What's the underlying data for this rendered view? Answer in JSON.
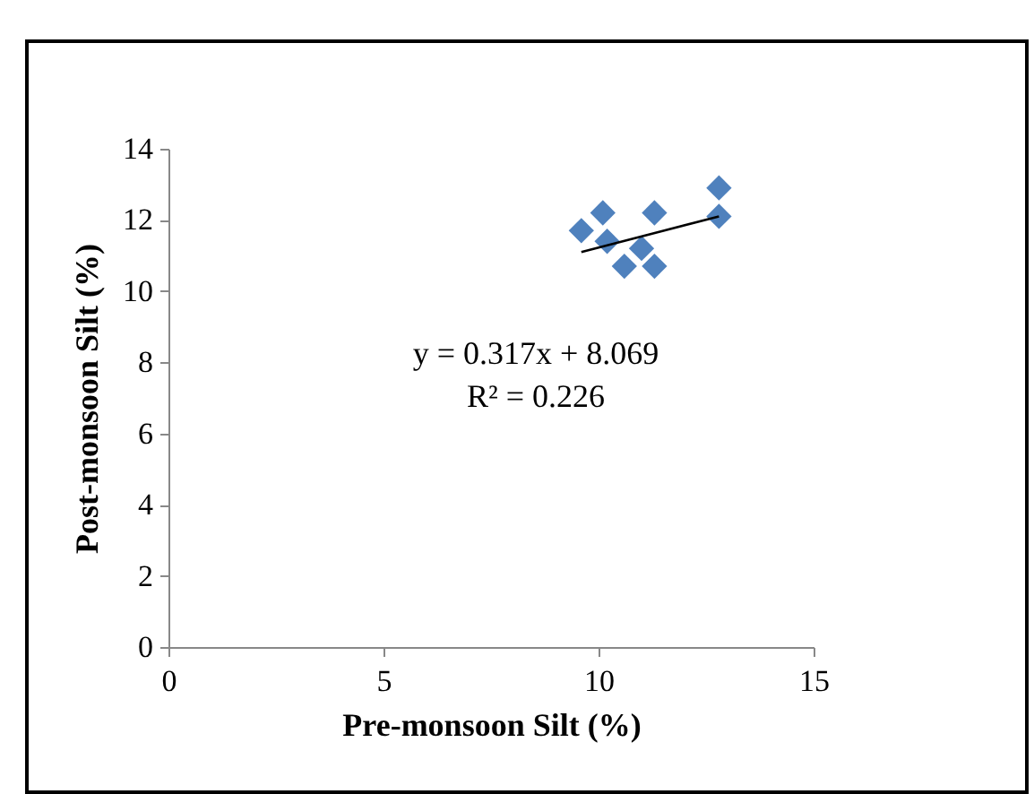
{
  "chart_data": {
    "type": "scatter",
    "xlabel": "Pre-monsoon Silt (%)",
    "ylabel": "Post-monsoon Silt (%)",
    "xlim": [
      0,
      15
    ],
    "xticks": [
      0,
      5,
      10,
      15
    ],
    "ylim": [
      0,
      14
    ],
    "yticks": [
      0,
      2,
      4,
      6,
      8,
      10,
      12,
      14
    ],
    "grid": false,
    "annotations": [
      "y = 0.317x + 8.069",
      "R² = 0.226"
    ],
    "series": [
      {
        "color": "#4f81bd",
        "marker": "diamond",
        "x": [
          9.6,
          10.1,
          10.2,
          10.6,
          11.3,
          11.0,
          11.3,
          12.8,
          12.8
        ],
        "values": [
          11.7,
          12.2,
          11.4,
          10.7,
          12.2,
          11.2,
          10.7,
          12.9,
          12.1
        ]
      },
      {
        "type": "line",
        "color": "#000000",
        "x": [
          9.6,
          12.8
        ],
        "values": [
          11.1,
          12.1
        ]
      }
    ]
  }
}
